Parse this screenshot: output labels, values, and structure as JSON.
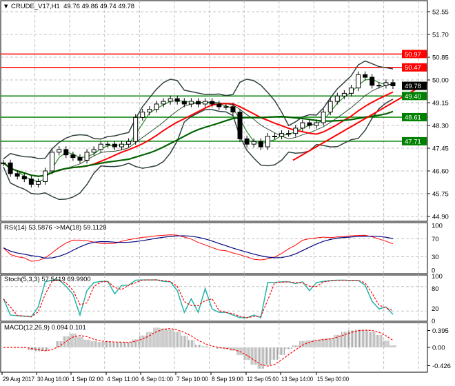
{
  "chart_data": {
    "type": "candlestick",
    "symbol_label": "CRUDE_V17,H1",
    "ohlc_label": "49.76 49.86 49.74 49.78",
    "price_ticks": [
      "52.55",
      "51.70",
      "50.85",
      "50.00",
      "49.15",
      "48.30",
      "47.45",
      "46.60",
      "45.75",
      "44.90"
    ],
    "ylim": [
      44.9,
      52.55
    ],
    "current_price": "49.78",
    "levels": [
      {
        "value": 50.97,
        "label": "50.97",
        "color": "#ff0000"
      },
      {
        "value": 50.47,
        "label": "50.47",
        "color": "#ff0000"
      },
      {
        "value": 49.4,
        "label": "49.40",
        "color": "#008000"
      },
      {
        "value": 48.61,
        "label": "48.61",
        "color": "#008000"
      },
      {
        "value": 47.71,
        "label": "47.71",
        "color": "#008000"
      }
    ],
    "x_ticks": [
      "29 Aug 2017",
      "30 Aug 16:00",
      "1 Sep 02:00",
      "4 Sep 11:00",
      "6 Sep 01:00",
      "7 Sep 10:00",
      "8 Sep 19:00",
      "12 Sep 05:00",
      "13 Sep 14:00",
      "15 Sep 00:00"
    ],
    "closes": [
      46.9,
      46.5,
      46.4,
      46.3,
      46.1,
      46.2,
      46.6,
      47.3,
      47.4,
      47.2,
      47.1,
      47.0,
      47.3,
      47.4,
      47.6,
      47.6,
      47.5,
      47.6,
      47.7,
      48.6,
      48.8,
      48.9,
      49.1,
      49.2,
      49.3,
      49.2,
      49.1,
      49.2,
      49.1,
      49.2,
      49.1,
      49.0,
      49.0,
      48.8,
      47.8,
      47.6,
      47.7,
      47.5,
      47.9,
      47.9,
      48.0,
      48.0,
      48.2,
      48.4,
      48.3,
      48.4,
      48.8,
      49.2,
      49.4,
      49.5,
      49.7,
      50.2,
      50.1,
      49.8,
      49.8,
      49.9,
      49.78
    ],
    "grid": true,
    "indicators": {
      "rsi": {
        "label": "RSI(14) 53.5876  ->MA(18) 59.1128",
        "ticks": [
          "100",
          "70",
          "30",
          "0"
        ],
        "line_color": "#ff0000",
        "ma_color": "#000080"
      },
      "stoch": {
        "label": "Stoch(5,3,3) 57.5419 69.9900",
        "ticks": [
          "100",
          "80",
          "20",
          "0"
        ],
        "main_color": "#20b2aa",
        "signal_color": "#ff0000"
      },
      "macd": {
        "label": "MACD(12,26,9) 0.094 0.101",
        "ticks": [
          "0.395",
          "0.00",
          "-0.426"
        ],
        "hist_color": "#a0a0a0",
        "signal_color": "#ff0000"
      }
    }
  }
}
